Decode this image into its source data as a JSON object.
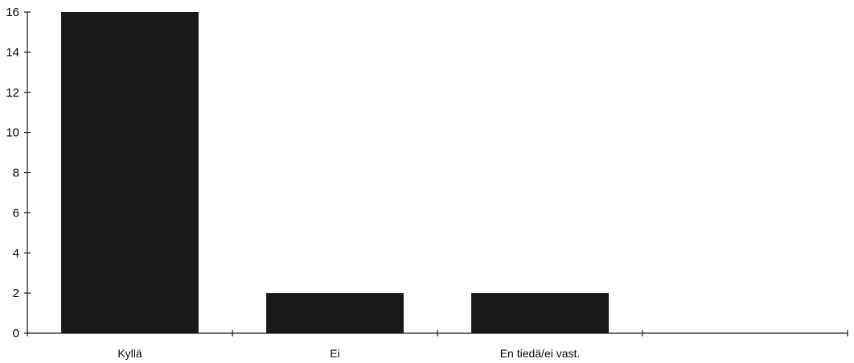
{
  "chart_data": {
    "type": "bar",
    "title": "",
    "xlabel": "",
    "ylabel": "",
    "categories": [
      "Kyllä",
      "Ei",
      "En tiedä/ei vast.",
      ""
    ],
    "values": [
      16,
      2,
      2,
      0
    ],
    "ylim": [
      0,
      16
    ],
    "yticks": [
      "0",
      "2",
      "4",
      "6",
      "8",
      "10",
      "12",
      "14",
      "16"
    ],
    "bar_color": "#1a1a1a",
    "grid": false,
    "legend": "none"
  }
}
